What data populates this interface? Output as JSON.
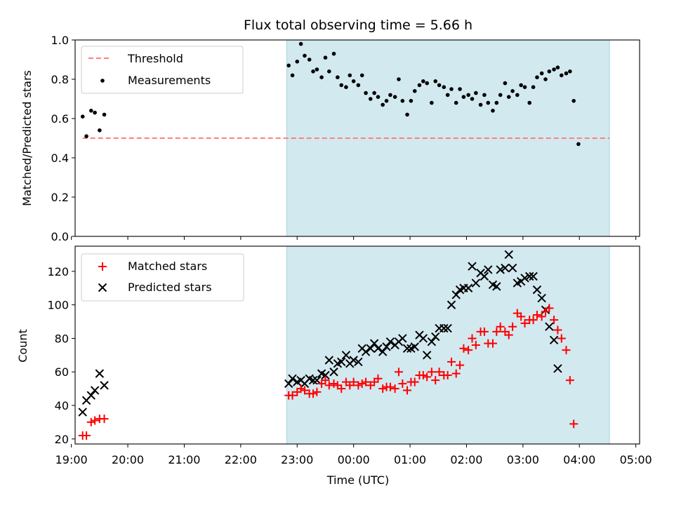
{
  "title": "Flux total observing time = 5.66 h",
  "colors": {
    "shade": "#d3e9f0",
    "threshold": "#ff7f7f",
    "matched": "#ff0000",
    "predicted": "#000000",
    "measurement": "#000000"
  },
  "chart_data": [
    {
      "type": "scatter",
      "ylabel": "Matched/Predicted stars",
      "xlim": [
        "19:04",
        "05:04"
      ],
      "ylim": [
        0,
        1.0
      ],
      "yticks": [
        0.0,
        0.2,
        0.4,
        0.6,
        0.8,
        1.0
      ],
      "ytick_labels": [
        "0.0",
        "0.2",
        "0.4",
        "0.6",
        "0.8",
        "1.0"
      ],
      "shaded_interval": [
        "22:49",
        "04:32"
      ],
      "legend": {
        "placement": "upper-left",
        "entries": [
          "Threshold",
          "Measurements"
        ]
      },
      "threshold": {
        "name": "Threshold",
        "y": 0.5,
        "x_start": "19:12",
        "x_end": "04:32"
      },
      "series": [
        {
          "name": "Measurements",
          "points": [
            [
              "19:12",
              0.61
            ],
            [
              "19:16",
              0.51
            ],
            [
              "19:21",
              0.64
            ],
            [
              "19:25",
              0.63
            ],
            [
              "19:30",
              0.54
            ],
            [
              "19:35",
              0.62
            ],
            [
              "22:51",
              0.87
            ],
            [
              "22:55",
              0.82
            ],
            [
              "23:00",
              0.89
            ],
            [
              "23:04",
              0.98
            ],
            [
              "23:08",
              0.92
            ],
            [
              "23:13",
              0.9
            ],
            [
              "23:17",
              0.84
            ],
            [
              "23:21",
              0.85
            ],
            [
              "23:26",
              0.81
            ],
            [
              "23:30",
              0.91
            ],
            [
              "23:34",
              0.84
            ],
            [
              "23:39",
              0.93
            ],
            [
              "23:43",
              0.81
            ],
            [
              "23:47",
              0.77
            ],
            [
              "23:52",
              0.76
            ],
            [
              "23:56",
              0.82
            ],
            [
              "00:00",
              0.79
            ],
            [
              "00:05",
              0.77
            ],
            [
              "00:09",
              0.82
            ],
            [
              "00:13",
              0.73
            ],
            [
              "00:18",
              0.7
            ],
            [
              "00:22",
              0.73
            ],
            [
              "00:26",
              0.71
            ],
            [
              "00:31",
              0.67
            ],
            [
              "00:35",
              0.69
            ],
            [
              "00:39",
              0.72
            ],
            [
              "00:44",
              0.71
            ],
            [
              "00:48",
              0.8
            ],
            [
              "00:52",
              0.69
            ],
            [
              "00:57",
              0.62
            ],
            [
              "01:01",
              0.69
            ],
            [
              "01:05",
              0.74
            ],
            [
              "01:10",
              0.77
            ],
            [
              "01:14",
              0.79
            ],
            [
              "01:18",
              0.78
            ],
            [
              "01:23",
              0.68
            ],
            [
              "01:27",
              0.79
            ],
            [
              "01:31",
              0.77
            ],
            [
              "01:36",
              0.76
            ],
            [
              "01:40",
              0.72
            ],
            [
              "01:44",
              0.75
            ],
            [
              "01:49",
              0.68
            ],
            [
              "01:53",
              0.75
            ],
            [
              "01:57",
              0.71
            ],
            [
              "02:02",
              0.72
            ],
            [
              "02:06",
              0.7
            ],
            [
              "02:10",
              0.73
            ],
            [
              "02:15",
              0.67
            ],
            [
              "02:19",
              0.72
            ],
            [
              "02:23",
              0.68
            ],
            [
              "02:28",
              0.64
            ],
            [
              "02:32",
              0.68
            ],
            [
              "02:36",
              0.72
            ],
            [
              "02:41",
              0.78
            ],
            [
              "02:45",
              0.71
            ],
            [
              "02:49",
              0.74
            ],
            [
              "02:54",
              0.72
            ],
            [
              "02:58",
              0.77
            ],
            [
              "03:02",
              0.76
            ],
            [
              "03:07",
              0.68
            ],
            [
              "03:11",
              0.76
            ],
            [
              "03:15",
              0.81
            ],
            [
              "03:20",
              0.83
            ],
            [
              "03:24",
              0.8
            ],
            [
              "03:28",
              0.84
            ],
            [
              "03:33",
              0.85
            ],
            [
              "03:37",
              0.86
            ],
            [
              "03:41",
              0.82
            ],
            [
              "03:46",
              0.83
            ],
            [
              "03:50",
              0.84
            ],
            [
              "03:54",
              0.69
            ],
            [
              "03:59",
              0.47
            ]
          ]
        }
      ]
    },
    {
      "type": "scatter",
      "ylabel": "Count",
      "xlabel": "Time (UTC)",
      "xlim": [
        "19:04",
        "05:04"
      ],
      "xticks": [
        "19:00",
        "20:00",
        "21:00",
        "22:00",
        "23:00",
        "00:00",
        "01:00",
        "02:00",
        "03:00",
        "04:00",
        "05:00"
      ],
      "ylim": [
        17,
        135
      ],
      "yticks": [
        20,
        40,
        60,
        80,
        100,
        120
      ],
      "shaded_interval": [
        "22:49",
        "04:32"
      ],
      "legend": {
        "placement": "upper-left",
        "entries": [
          "Matched stars",
          "Predicted stars"
        ]
      },
      "series": [
        {
          "name": "Matched stars",
          "points": [
            [
              "19:12",
              22
            ],
            [
              "19:16",
              22
            ],
            [
              "19:21",
              30
            ],
            [
              "19:25",
              31
            ],
            [
              "19:30",
              32
            ],
            [
              "19:35",
              32
            ],
            [
              "22:51",
              46
            ],
            [
              "22:55",
              46
            ],
            [
              "23:00",
              48
            ],
            [
              "23:04",
              50
            ],
            [
              "23:08",
              49
            ],
            [
              "23:13",
              47
            ],
            [
              "23:17",
              47
            ],
            [
              "23:21",
              48
            ],
            [
              "23:26",
              53
            ],
            [
              "23:30",
              55
            ],
            [
              "23:34",
              52
            ],
            [
              "23:39",
              53
            ],
            [
              "23:43",
              52
            ],
            [
              "23:47",
              50
            ],
            [
              "23:52",
              54
            ],
            [
              "23:56",
              52
            ],
            [
              "00:00",
              54
            ],
            [
              "00:05",
              52
            ],
            [
              "00:09",
              53
            ],
            [
              "00:13",
              54
            ],
            [
              "00:18",
              52
            ],
            [
              "00:22",
              54
            ],
            [
              "00:26",
              56
            ],
            [
              "00:31",
              50
            ],
            [
              "00:35",
              51
            ],
            [
              "00:39",
              51
            ],
            [
              "00:44",
              50
            ],
            [
              "00:48",
              60
            ],
            [
              "00:52",
              53
            ],
            [
              "00:57",
              49
            ],
            [
              "01:01",
              54
            ],
            [
              "01:05",
              54
            ],
            [
              "01:10",
              58
            ],
            [
              "01:14",
              58
            ],
            [
              "01:18",
              57
            ],
            [
              "01:23",
              60
            ],
            [
              "01:27",
              55
            ],
            [
              "01:31",
              60
            ],
            [
              "01:36",
              58
            ],
            [
              "01:40",
              58
            ],
            [
              "01:44",
              66
            ],
            [
              "01:49",
              59
            ],
            [
              "01:53",
              64
            ],
            [
              "01:57",
              74
            ],
            [
              "02:02",
              73
            ],
            [
              "02:06",
              80
            ],
            [
              "02:10",
              76
            ],
            [
              "02:15",
              84
            ],
            [
              "02:19",
              84
            ],
            [
              "02:23",
              77
            ],
            [
              "02:28",
              77
            ],
            [
              "02:32",
              84
            ],
            [
              "02:36",
              87
            ],
            [
              "02:41",
              84
            ],
            [
              "02:45",
              82
            ],
            [
              "02:49",
              87
            ],
            [
              "02:54",
              95
            ],
            [
              "02:58",
              93
            ],
            [
              "03:02",
              89
            ],
            [
              "03:07",
              91
            ],
            [
              "03:11",
              91
            ],
            [
              "03:15",
              94
            ],
            [
              "03:20",
              93
            ],
            [
              "03:24",
              96
            ],
            [
              "03:28",
              98
            ],
            [
              "03:33",
              91
            ],
            [
              "03:37",
              85
            ],
            [
              "03:41",
              80
            ],
            [
              "03:46",
              73
            ],
            [
              "03:50",
              55
            ],
            [
              "03:54",
              29
            ]
          ]
        },
        {
          "name": "Predicted stars",
          "points": [
            [
              "19:12",
              36
            ],
            [
              "19:16",
              43
            ],
            [
              "19:21",
              46
            ],
            [
              "19:25",
              49
            ],
            [
              "19:30",
              59
            ],
            [
              "19:35",
              52
            ],
            [
              "22:51",
              53
            ],
            [
              "22:55",
              56
            ],
            [
              "23:00",
              54
            ],
            [
              "23:04",
              55
            ],
            [
              "23:08",
              53
            ],
            [
              "23:13",
              56
            ],
            [
              "23:17",
              55
            ],
            [
              "23:21",
              55
            ],
            [
              "23:26",
              59
            ],
            [
              "23:30",
              58
            ],
            [
              "23:34",
              67
            ],
            [
              "23:39",
              60
            ],
            [
              "23:43",
              65
            ],
            [
              "23:47",
              66
            ],
            [
              "23:52",
              70
            ],
            [
              "23:56",
              65
            ],
            [
              "00:00",
              67
            ],
            [
              "00:05",
              66
            ],
            [
              "00:09",
              74
            ],
            [
              "00:13",
              72
            ],
            [
              "00:18",
              74
            ],
            [
              "00:22",
              77
            ],
            [
              "00:26",
              74
            ],
            [
              "00:31",
              72
            ],
            [
              "00:35",
              75
            ],
            [
              "00:39",
              78
            ],
            [
              "00:44",
              76
            ],
            [
              "00:48",
              78
            ],
            [
              "00:52",
              80
            ],
            [
              "00:57",
              74
            ],
            [
              "01:01",
              74
            ],
            [
              "01:05",
              75
            ],
            [
              "01:10",
              82
            ],
            [
              "01:14",
              80
            ],
            [
              "01:18",
              70
            ],
            [
              "01:23",
              78
            ],
            [
              "01:27",
              81
            ],
            [
              "01:31",
              86
            ],
            [
              "01:36",
              86
            ],
            [
              "01:40",
              86
            ],
            [
              "01:44",
              100
            ],
            [
              "01:49",
              106
            ],
            [
              "01:53",
              109
            ],
            [
              "01:57",
              110
            ],
            [
              "02:02",
              110
            ],
            [
              "02:06",
              123
            ],
            [
              "02:10",
              113
            ],
            [
              "02:15",
              119
            ],
            [
              "02:19",
              117
            ],
            [
              "02:23",
              121
            ],
            [
              "02:28",
              112
            ],
            [
              "02:32",
              111
            ],
            [
              "02:36",
              121
            ],
            [
              "02:41",
              122
            ],
            [
              "02:45",
              130
            ],
            [
              "02:49",
              122
            ],
            [
              "02:54",
              113
            ],
            [
              "02:58",
              114
            ],
            [
              "03:02",
              116
            ],
            [
              "03:07",
              117
            ],
            [
              "03:11",
              117
            ],
            [
              "03:15",
              109
            ],
            [
              "03:20",
              104
            ],
            [
              "03:24",
              97
            ],
            [
              "03:28",
              87
            ],
            [
              "03:33",
              79
            ],
            [
              "03:37",
              62
            ]
          ]
        }
      ]
    }
  ]
}
